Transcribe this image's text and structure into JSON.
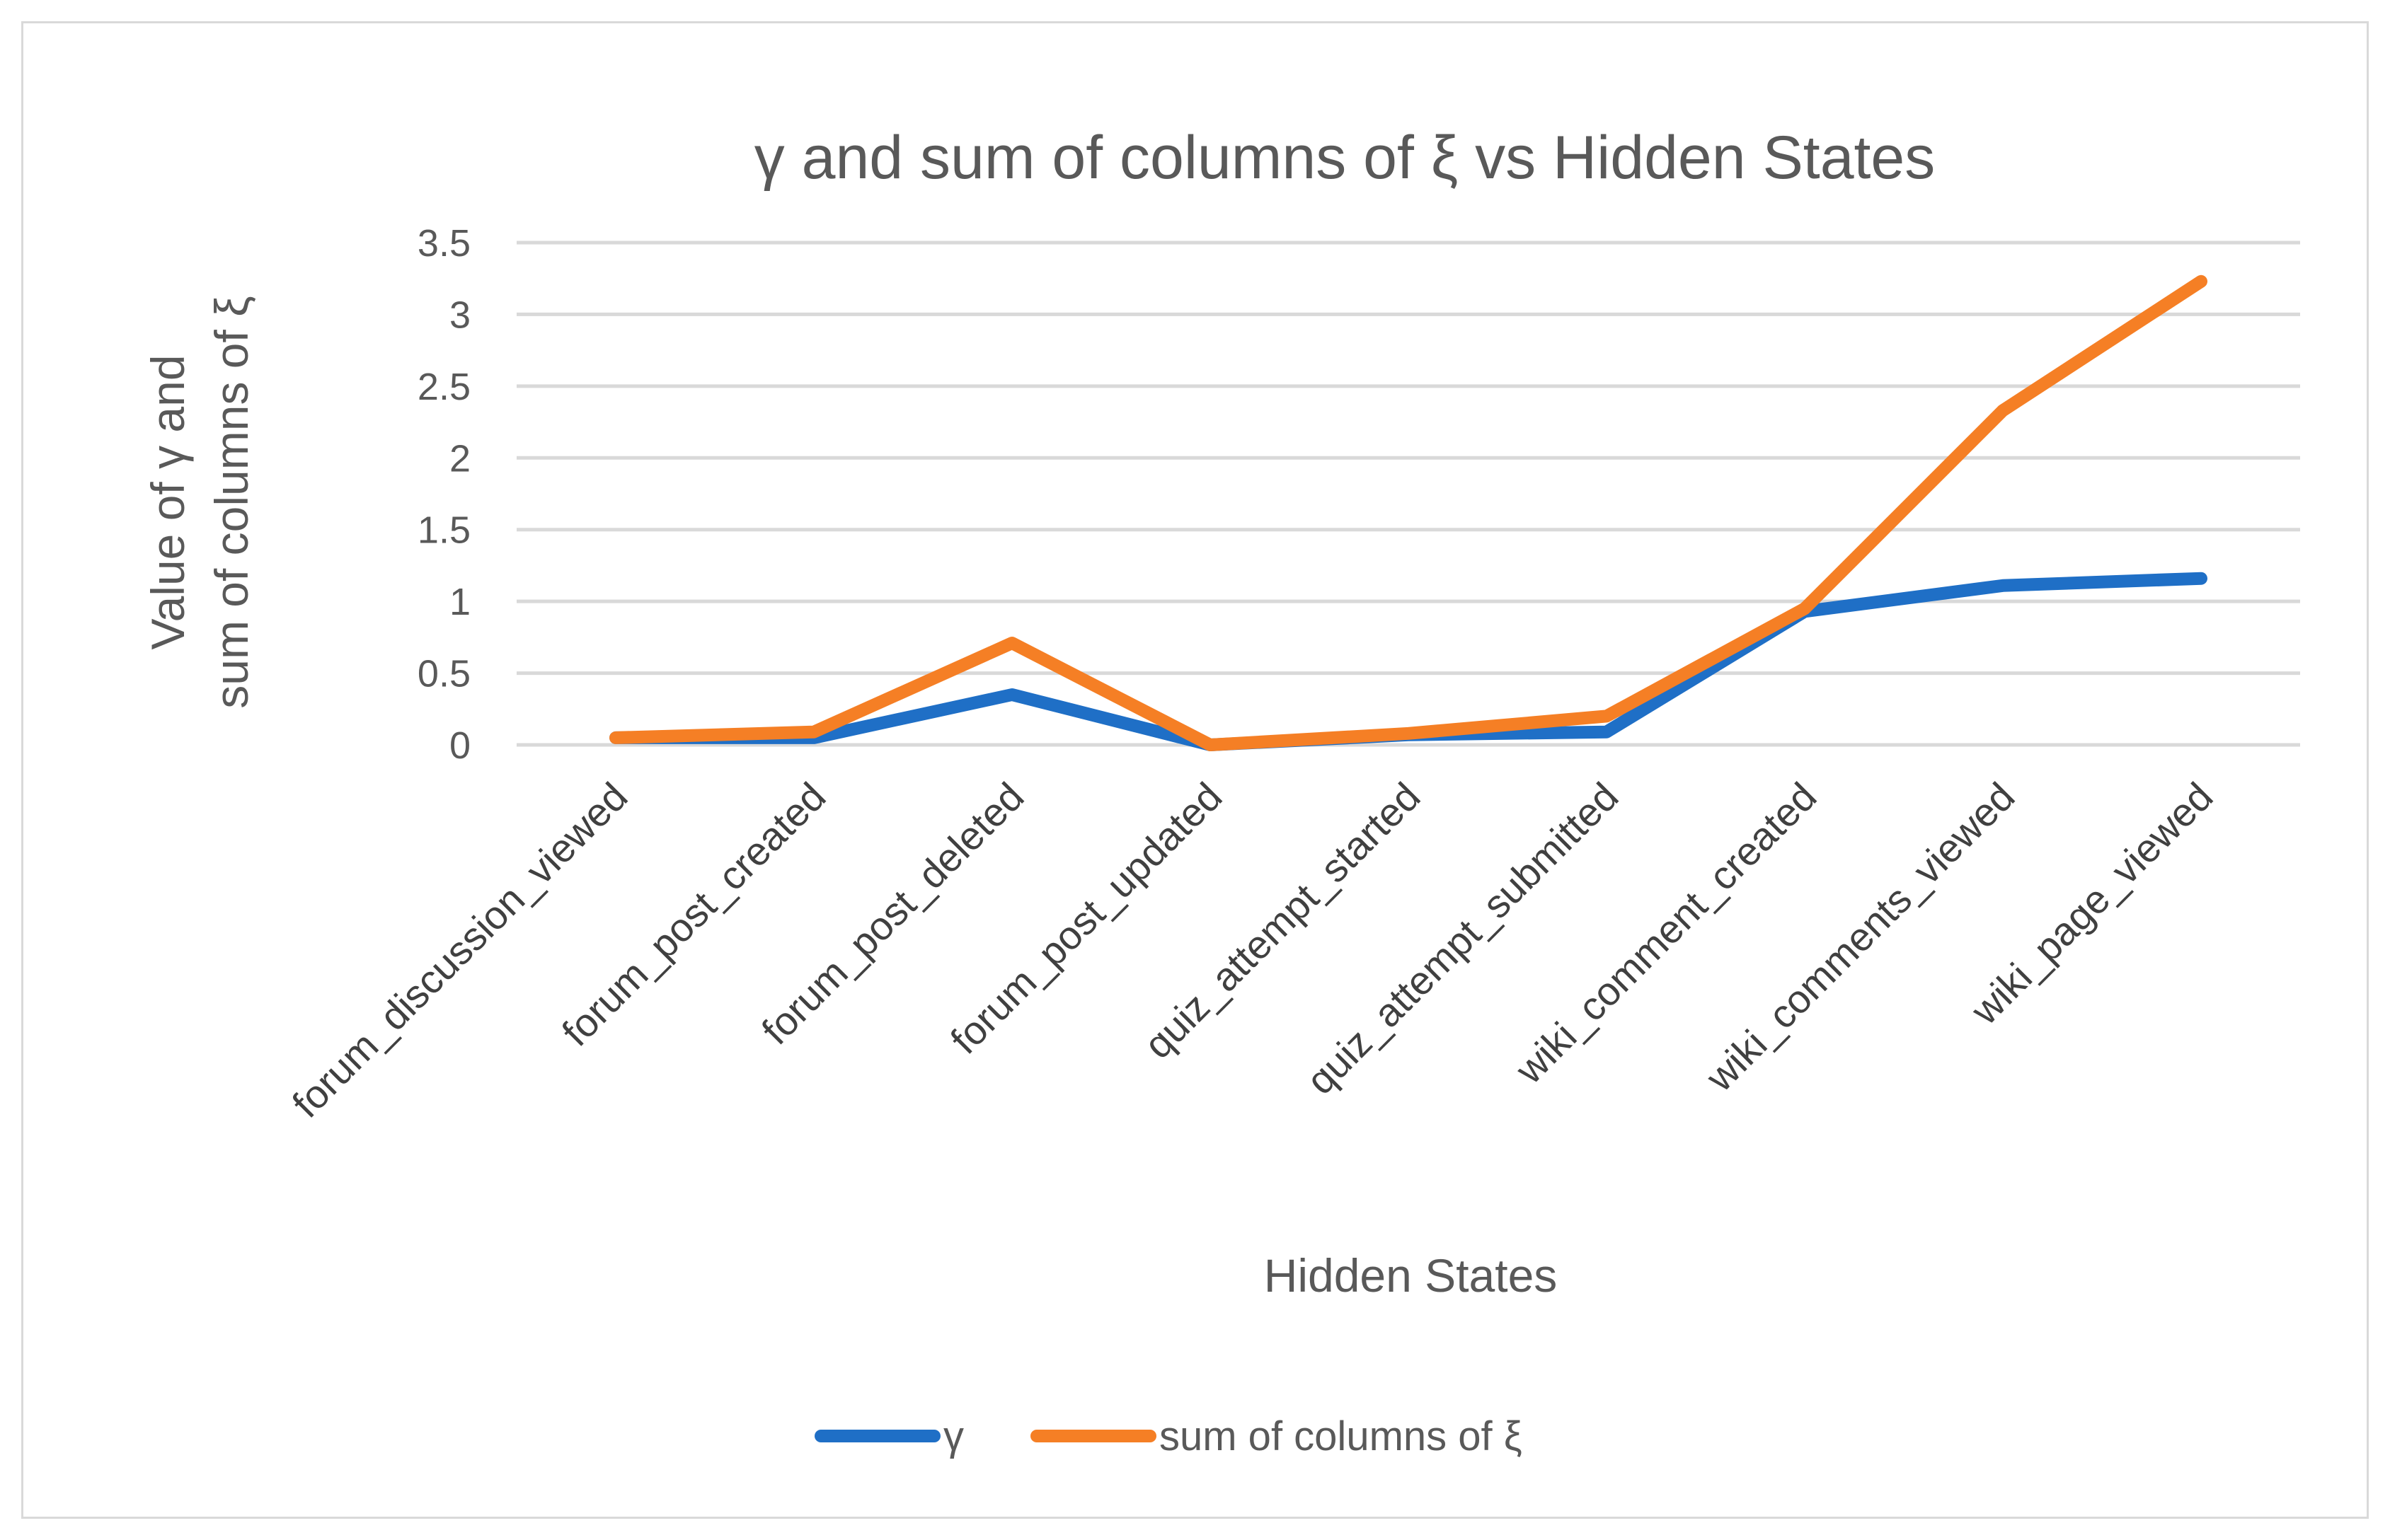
{
  "chart_data": {
    "type": "line",
    "title": "γ and sum of columns of ξ vs Hidden States",
    "xlabel": "Hidden States",
    "ylabel_line1": "Value of γ and",
    "ylabel_line2": "sum of columns of ξ",
    "ylim": [
      0,
      3.5
    ],
    "yticks": [
      "0",
      "0.5",
      "1",
      "1.5",
      "2",
      "2.5",
      "3",
      "3.5"
    ],
    "categories": [
      "forum_discussion_viewed",
      "forum_post_created",
      "forum_post_deleted",
      "forum_post_updated",
      "quiz_attempt_started",
      "quiz_attempt_submitted",
      "wiki_comment_created",
      "wiki_comments_viewed",
      "wiki_page_viewed"
    ],
    "series": [
      {
        "name": "γ",
        "color": "#1f6fc6",
        "values": [
          0.05,
          0.05,
          0.35,
          0.0,
          0.07,
          0.09,
          0.93,
          1.11,
          1.16
        ]
      },
      {
        "name": "sum of columns of ξ",
        "color": "#f57f25",
        "values": [
          0.05,
          0.09,
          0.71,
          0.0,
          0.08,
          0.2,
          0.95,
          2.33,
          3.23
        ]
      }
    ],
    "grid": true,
    "legend_position": "bottom"
  }
}
